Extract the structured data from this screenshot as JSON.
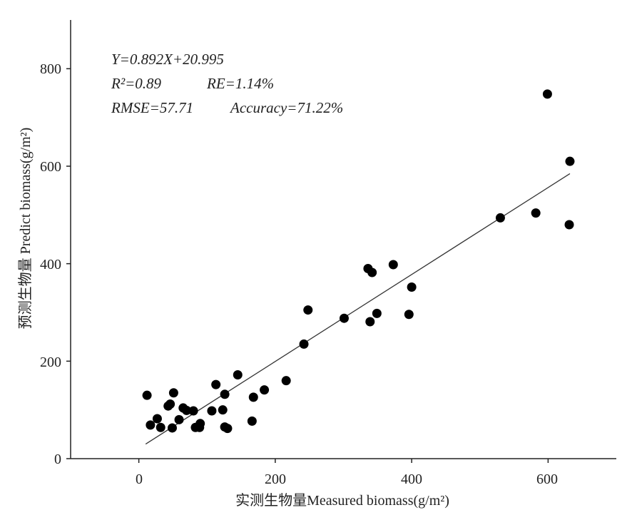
{
  "chart_data": {
    "type": "scatter",
    "xlabel": "实测生物量Measured biomass(g/m²)",
    "ylabel": "预测生物量 Predict biomass(g/m²)",
    "xlim": [
      -100,
      700
    ],
    "ylim": [
      0,
      900
    ],
    "xticks": [
      0,
      200,
      400,
      600
    ],
    "yticks": [
      0,
      200,
      400,
      600,
      800
    ],
    "grid": false,
    "annotations": {
      "line1": "Y=0.892X+20.995",
      "line2_r2": "R²=0.89",
      "line2_re": "RE=1.14%",
      "line3_rmse": "RMSE=57.71",
      "line3_acc": "Accuracy=71.22%"
    },
    "fit_line": {
      "slope": 0.892,
      "intercept": 20.995,
      "x_range": [
        10,
        632
      ]
    },
    "points": [
      {
        "x": 12,
        "y": 130
      },
      {
        "x": 17,
        "y": 69
      },
      {
        "x": 27,
        "y": 82
      },
      {
        "x": 32,
        "y": 64
      },
      {
        "x": 43,
        "y": 108
      },
      {
        "x": 46,
        "y": 112
      },
      {
        "x": 49,
        "y": 63
      },
      {
        "x": 51,
        "y": 135
      },
      {
        "x": 59,
        "y": 80
      },
      {
        "x": 65,
        "y": 104
      },
      {
        "x": 70,
        "y": 99
      },
      {
        "x": 80,
        "y": 98
      },
      {
        "x": 83,
        "y": 64
      },
      {
        "x": 89,
        "y": 64
      },
      {
        "x": 90,
        "y": 72
      },
      {
        "x": 107,
        "y": 98
      },
      {
        "x": 113,
        "y": 152
      },
      {
        "x": 123,
        "y": 100
      },
      {
        "x": 126,
        "y": 132
      },
      {
        "x": 126,
        "y": 65
      },
      {
        "x": 130,
        "y": 62
      },
      {
        "x": 145,
        "y": 172
      },
      {
        "x": 166,
        "y": 77
      },
      {
        "x": 168,
        "y": 126
      },
      {
        "x": 184,
        "y": 141
      },
      {
        "x": 216,
        "y": 160
      },
      {
        "x": 242,
        "y": 235
      },
      {
        "x": 248,
        "y": 305
      },
      {
        "x": 301,
        "y": 288
      },
      {
        "x": 336,
        "y": 390
      },
      {
        "x": 339,
        "y": 281
      },
      {
        "x": 342,
        "y": 382
      },
      {
        "x": 349,
        "y": 298
      },
      {
        "x": 373,
        "y": 398
      },
      {
        "x": 396,
        "y": 296
      },
      {
        "x": 400,
        "y": 352
      },
      {
        "x": 530,
        "y": 494
      },
      {
        "x": 582,
        "y": 504
      },
      {
        "x": 599,
        "y": 748
      },
      {
        "x": 632,
        "y": 610
      },
      {
        "x": 631,
        "y": 480
      }
    ]
  },
  "colors": {
    "axis": "#222222",
    "point": "#000000",
    "line": "#333333"
  }
}
